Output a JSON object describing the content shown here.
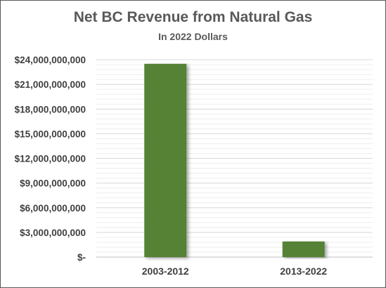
{
  "chart_data": {
    "type": "bar",
    "title": "Net BC Revenue from Natural Gas",
    "subtitle": "In 2022 Dollars",
    "xlabel": "",
    "ylabel": "",
    "categories": [
      "2003-2012",
      "2013-2022"
    ],
    "values": [
      23500000000,
      1900000000
    ],
    "ylim": [
      0,
      24000000000
    ],
    "yticks": [
      0,
      3000000000,
      6000000000,
      9000000000,
      12000000000,
      15000000000,
      18000000000,
      21000000000,
      24000000000
    ],
    "ytick_labels": [
      "$-",
      "$3,000,000,000",
      "$6,000,000,000",
      "$9,000,000,000",
      "$12,000,000,000",
      "$15,000,000,000",
      "$18,000,000,000",
      "$21,000,000,000",
      "$24,000,000,000"
    ],
    "grid": true,
    "legend": "none",
    "bar_color": "#548235",
    "grid_color": "#d9d9d9",
    "axis_color": "#bfbfbf"
  }
}
